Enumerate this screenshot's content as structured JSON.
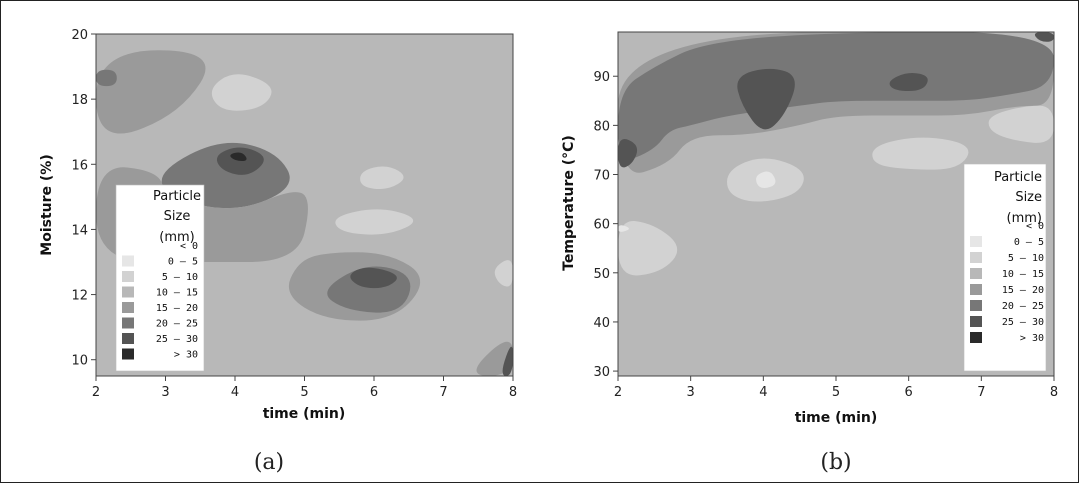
{
  "chart_data": [
    {
      "type": "heatmap",
      "panel_caption": "(a)",
      "xlabel": "time (min)",
      "ylabel": "Moisture (%)",
      "xlim": [
        2,
        8
      ],
      "ylim": [
        9.5,
        20
      ],
      "xticks": [
        2,
        3,
        4,
        5,
        6,
        7,
        8
      ],
      "yticks": [
        10,
        12,
        14,
        16,
        18,
        20
      ],
      "legend": {
        "title": [
          "Particle",
          "Size",
          "(mm)"
        ],
        "placement": "bottom-left",
        "entries": [
          {
            "range": "<  0",
            "color": "#ffffff"
          },
          {
            "range": "0  –  5",
            "color": "#e6e6e6"
          },
          {
            "range": "5  –  10",
            "color": "#d2d2d2"
          },
          {
            "range": "10  –  15",
            "color": "#b8b8b8"
          },
          {
            "range": "15  –  20",
            "color": "#9a9a9a"
          },
          {
            "range": "20  –  25",
            "color": "#777777"
          },
          {
            "range": "25  –  30",
            "color": "#545454"
          },
          {
            "range": ">  30",
            "color": "#2a2a2a"
          }
        ]
      },
      "background_level_color": "#b8b8b8",
      "regions": [
        {
          "level_color": "#9a9a9a",
          "points": [
            [
              2,
              19.5
            ],
            [
              3.8,
              19.5
            ],
            [
              3.2,
              17.5
            ],
            [
              2,
              16.6
            ]
          ]
        },
        {
          "level_color": "#777777",
          "points": [
            [
              2,
              18.9
            ],
            [
              2.3,
              18.9
            ],
            [
              2.3,
              18.4
            ],
            [
              2,
              18.4
            ]
          ]
        },
        {
          "level_color": "#d2d2d2",
          "points": [
            [
              3.6,
              18.3
            ],
            [
              4,
              18.9
            ],
            [
              4.6,
              18.4
            ],
            [
              4.4,
              17.7
            ],
            [
              3.8,
              17.6
            ]
          ]
        },
        {
          "level_color": "#777777",
          "points": [
            [
              2.9,
              15.8
            ],
            [
              3.8,
              16.8
            ],
            [
              4.6,
              16.4
            ],
            [
              4.9,
              15.3
            ],
            [
              4,
              14.5
            ],
            [
              3,
              15
            ]
          ]
        },
        {
          "level_color": "#545454",
          "points": [
            [
              3.7,
              16.3
            ],
            [
              4.1,
              16.6
            ],
            [
              4.5,
              16.2
            ],
            [
              4.2,
              15.6
            ],
            [
              3.8,
              15.8
            ]
          ]
        },
        {
          "level_color": "#2a2a2a",
          "points": [
            [
              3.9,
              16.3
            ],
            [
              4.1,
              16.4
            ],
            [
              4.2,
              16.1
            ],
            [
              4,
              16.1
            ]
          ]
        },
        {
          "level_color": "#9a9a9a",
          "points": [
            [
              2,
              16
            ],
            [
              2.9,
              15.8
            ],
            [
              3,
              15
            ],
            [
              4,
              14.5
            ],
            [
              4.9,
              15.3
            ],
            [
              5.1,
              14.8
            ],
            [
              4.9,
              13
            ],
            [
              3.5,
              13
            ],
            [
              2,
              13
            ]
          ]
        },
        {
          "level_color": "#d2d2d2",
          "points": [
            [
              5.8,
              15.8
            ],
            [
              6.2,
              16
            ],
            [
              6.5,
              15.6
            ],
            [
              6.2,
              15.2
            ],
            [
              5.8,
              15.3
            ]
          ]
        },
        {
          "level_color": "#d2d2d2",
          "points": [
            [
              5.4,
              14.4
            ],
            [
              6.1,
              14.7
            ],
            [
              6.7,
              14.3
            ],
            [
              6.2,
              13.8
            ],
            [
              5.5,
              13.9
            ]
          ]
        },
        {
          "level_color": "#9a9a9a",
          "points": [
            [
              4.9,
              13
            ],
            [
              5.3,
              13.3
            ],
            [
              6.2,
              13.3
            ],
            [
              6.8,
              12.5
            ],
            [
              6.3,
              11.2
            ],
            [
              5.3,
              11.2
            ],
            [
              4.7,
              12
            ]
          ]
        },
        {
          "level_color": "#777777",
          "points": [
            [
              5.2,
              12.1
            ],
            [
              5.9,
              13
            ],
            [
              6.6,
              12.6
            ],
            [
              6.4,
              11.4
            ],
            [
              5.6,
              11.5
            ]
          ]
        },
        {
          "level_color": "#545454",
          "points": [
            [
              5.6,
              12.6
            ],
            [
              5.9,
              12.9
            ],
            [
              6.4,
              12.6
            ],
            [
              6.2,
              12.2
            ],
            [
              5.8,
              12.2
            ]
          ]
        },
        {
          "level_color": "#d2d2d2",
          "points": [
            [
              7.7,
              12.8
            ],
            [
              8,
              13.2
            ],
            [
              8,
              12.2
            ],
            [
              7.8,
              12.3
            ]
          ]
        },
        {
          "level_color": "#9a9a9a",
          "points": [
            [
              7.3,
              9.5
            ],
            [
              8,
              10.9
            ],
            [
              8,
              9.5
            ]
          ]
        },
        {
          "level_color": "#545454",
          "points": [
            [
              7.8,
              9.5
            ],
            [
              8,
              10.7
            ],
            [
              8,
              9.5
            ]
          ]
        }
      ]
    },
    {
      "type": "heatmap",
      "panel_caption": "(b)",
      "xlabel": "time (min)",
      "ylabel": "Temperature (°C)",
      "xlim": [
        2,
        8
      ],
      "ylim": [
        29,
        99
      ],
      "xticks": [
        2,
        3,
        4,
        5,
        6,
        7,
        8
      ],
      "yticks": [
        30,
        40,
        50,
        60,
        70,
        80,
        90
      ],
      "legend": {
        "title": [
          "Particle",
          "Size",
          "(mm)"
        ],
        "placement": "bottom-right",
        "entries": [
          {
            "range": "<  0",
            "color": "#ffffff"
          },
          {
            "range": "0  –  5",
            "color": "#e6e6e6"
          },
          {
            "range": "5  –  10",
            "color": "#d2d2d2"
          },
          {
            "range": "10  –  15",
            "color": "#b8b8b8"
          },
          {
            "range": "15  –  20",
            "color": "#9a9a9a"
          },
          {
            "range": "20  –  25",
            "color": "#777777"
          },
          {
            "range": "25  –  30",
            "color": "#545454"
          },
          {
            "range": ">  30",
            "color": "#2a2a2a"
          }
        ]
      },
      "background_level_color": "#b8b8b8",
      "regions": [
        {
          "level_color": "#9a9a9a",
          "points": [
            [
              2,
              99
            ],
            [
              8,
              99
            ],
            [
              8,
              84
            ],
            [
              7.5,
              84
            ],
            [
              6.8,
              82
            ],
            [
              6,
              82
            ],
            [
              5,
              82
            ],
            [
              4.5,
              80
            ],
            [
              3.8,
              78
            ],
            [
              3,
              78
            ],
            [
              2.7,
              72
            ],
            [
              2,
              69
            ]
          ]
        },
        {
          "level_color": "#777777",
          "points": [
            [
              2,
              87
            ],
            [
              2.5,
              92
            ],
            [
              3.2,
              97
            ],
            [
              5,
              99
            ],
            [
              8,
              99
            ],
            [
              8,
              88
            ],
            [
              7.3,
              86
            ],
            [
              6.8,
              85
            ],
            [
              6,
              85
            ],
            [
              5,
              85
            ],
            [
              4.5,
              84
            ],
            [
              3.5,
              82
            ],
            [
              3,
              80
            ],
            [
              2.7,
              79
            ],
            [
              2.5,
              75
            ],
            [
              2,
              72
            ]
          ]
        },
        {
          "level_color": "#545454",
          "points": [
            [
              3.6,
              90
            ],
            [
              4.1,
              92
            ],
            [
              4.5,
              90
            ],
            [
              4.3,
              82
            ],
            [
              4,
              78
            ],
            [
              3.7,
              84
            ]
          ]
        },
        {
          "level_color": "#545454",
          "points": [
            [
              5.7,
              89
            ],
            [
              6,
              91
            ],
            [
              6.3,
              90
            ],
            [
              6.2,
              87
            ],
            [
              5.8,
              87
            ]
          ]
        },
        {
          "level_color": "#545454",
          "points": [
            [
              7.7,
              99
            ],
            [
              8,
              99
            ],
            [
              8,
              97
            ],
            [
              7.8,
              97
            ]
          ]
        },
        {
          "level_color": "#545454",
          "points": [
            [
              2,
              78
            ],
            [
              2.3,
              76
            ],
            [
              2.2,
              72
            ],
            [
              2,
              71
            ]
          ]
        },
        {
          "level_color": "#d2d2d2",
          "points": [
            [
              3.5,
              71
            ],
            [
              4,
              74
            ],
            [
              4.6,
              71
            ],
            [
              4.5,
              66
            ],
            [
              3.9,
              64
            ],
            [
              3.5,
              66
            ]
          ]
        },
        {
          "level_color": "#e6e6e6",
          "points": [
            [
              3.9,
              70
            ],
            [
              4.1,
              71
            ],
            [
              4.2,
              68
            ],
            [
              4,
              67
            ],
            [
              3.9,
              68
            ]
          ]
        },
        {
          "level_color": "#d2d2d2",
          "points": [
            [
              5.5,
              76
            ],
            [
              6.2,
              78
            ],
            [
              6.9,
              76
            ],
            [
              6.7,
              71
            ],
            [
              6,
              71
            ],
            [
              5.5,
              72
            ]
          ]
        },
        {
          "level_color": "#d2d2d2",
          "points": [
            [
              7.1,
              82
            ],
            [
              7.6,
              84
            ],
            [
              8,
              84
            ],
            [
              8,
              76
            ],
            [
              7.4,
              77
            ],
            [
              7.1,
              79
            ]
          ]
        },
        {
          "level_color": "#d2d2d2",
          "points": [
            [
              2,
              61
            ],
            [
              2.5,
              60
            ],
            [
              2.9,
              55
            ],
            [
              2.6,
              50
            ],
            [
              2,
              49
            ]
          ]
        },
        {
          "level_color": "#e6e6e6",
          "points": [
            [
              2,
              60
            ],
            [
              2.2,
              59
            ],
            [
              2,
              58
            ]
          ]
        }
      ]
    }
  ]
}
